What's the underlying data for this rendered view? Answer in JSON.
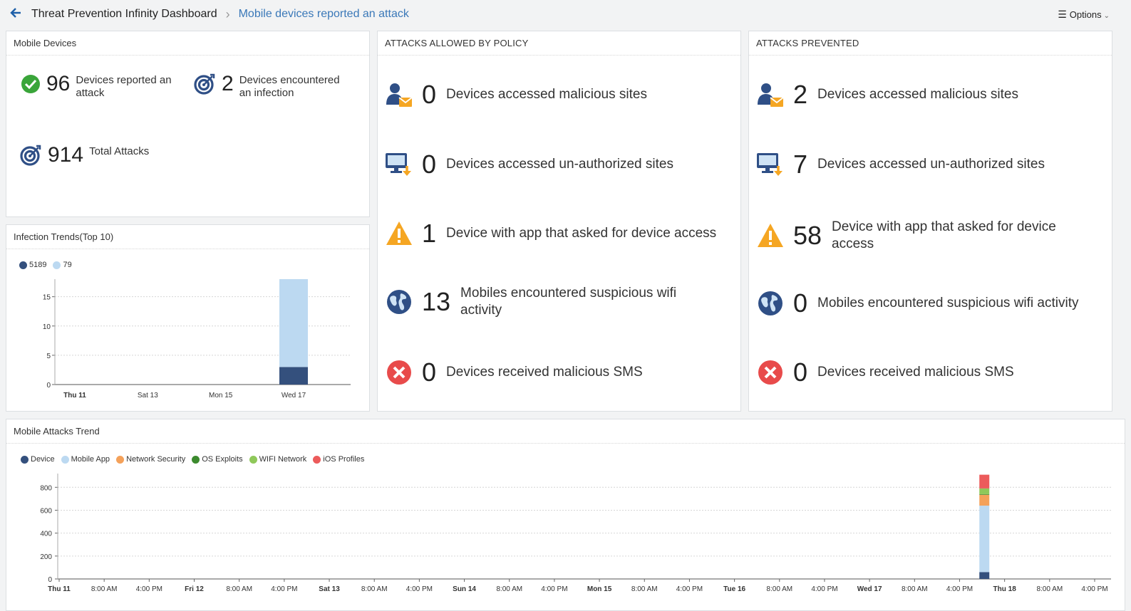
{
  "header": {
    "dashboard_title": "Threat Prevention Infinity Dashboard",
    "current_page": "Mobile devices reported an attack",
    "options_label": "Options"
  },
  "mobile_devices": {
    "title": "Mobile Devices",
    "reported": {
      "value": "96",
      "label": "Devices reported an attack"
    },
    "infected": {
      "value": "2",
      "label": "Devices encountered an infection"
    },
    "total": {
      "value": "914",
      "label": "Total Attacks"
    }
  },
  "allowed": {
    "title": "ATTACKS ALLOWED BY POLICY",
    "rows": [
      {
        "value": "0",
        "label": "Devices accessed malicious sites",
        "icon": "user-mail-icon"
      },
      {
        "value": "0",
        "label": "Devices accessed un-authorized sites",
        "icon": "monitor-download-icon"
      },
      {
        "value": "1",
        "label": "Device with app that asked for device access",
        "icon": "warning-icon"
      },
      {
        "value": "13",
        "label": "Mobiles encountered suspicious wifi activity",
        "icon": "globe-icon"
      },
      {
        "value": "0",
        "label": "Devices received malicious SMS",
        "icon": "error-icon"
      }
    ]
  },
  "prevented": {
    "title": "ATTACKS PREVENTED",
    "rows": [
      {
        "value": "2",
        "label": "Devices accessed malicious sites",
        "icon": "user-mail-icon"
      },
      {
        "value": "7",
        "label": "Devices accessed un-authorized sites",
        "icon": "monitor-download-icon"
      },
      {
        "value": "58",
        "label": "Device with app that asked for device access",
        "icon": "warning-icon"
      },
      {
        "value": "0",
        "label": "Mobiles encountered suspicious wifi activity",
        "icon": "globe-icon"
      },
      {
        "value": "0",
        "label": "Devices received malicious SMS",
        "icon": "error-icon"
      }
    ]
  },
  "colors": {
    "device": "#34507d",
    "mobile_app": "#bcd9f1",
    "network_security": "#f4a15a",
    "os_exploits": "#3c8a2e",
    "wifi_network": "#8fc85a",
    "ios_profiles": "#ec5b5b",
    "accent": "#3a78b8"
  },
  "chart_data": [
    {
      "type": "bar",
      "title": "Infection Trends(Top 10)",
      "categories": [
        "Thu 11",
        "Sat 13",
        "Mon 15",
        "Wed 17"
      ],
      "series": [
        {
          "name": "5189",
          "values": [
            0,
            0,
            0,
            3
          ]
        },
        {
          "name": "79",
          "values": [
            0,
            0,
            0,
            15
          ]
        }
      ],
      "stacked": true,
      "ylim": [
        0,
        18
      ],
      "yticks": [
        0,
        5,
        10,
        15
      ],
      "grid": true,
      "legend": "top-left"
    },
    {
      "type": "bar",
      "title": "Mobile Attacks Trend",
      "categories": [
        "Thu 11",
        "8:00 AM",
        "4:00 PM",
        "Fri 12",
        "8:00 AM",
        "4:00 PM",
        "Sat 13",
        "8:00 AM",
        "4:00 PM",
        "Sun 14",
        "8:00 AM",
        "4:00 PM",
        "Mon 15",
        "8:00 AM",
        "4:00 PM",
        "Tue 16",
        "8:00 AM",
        "4:00 PM",
        "Wed 17",
        "8:00 AM",
        "4:00 PM",
        "Thu 18",
        "8:00 AM",
        "4:00 PM"
      ],
      "bold_categories": [
        "Thu 11",
        "Fri 12",
        "Sat 13",
        "Sun 14",
        "Mon 15",
        "Tue 16",
        "Wed 17",
        "Thu 18"
      ],
      "bar_day_fraction": 6.85,
      "series": [
        {
          "name": "Device",
          "value": 60
        },
        {
          "name": "Mobile App",
          "value": 580
        },
        {
          "name": "Network Security",
          "value": 95
        },
        {
          "name": "OS Exploits",
          "value": 5
        },
        {
          "name": "WIFI Network",
          "value": 50
        },
        {
          "name": "iOS Profiles",
          "value": 120
        }
      ],
      "stacked": true,
      "ylim": [
        0,
        920
      ],
      "yticks": [
        0,
        200,
        400,
        600,
        800
      ],
      "grid": true,
      "legend": "top-left"
    }
  ]
}
